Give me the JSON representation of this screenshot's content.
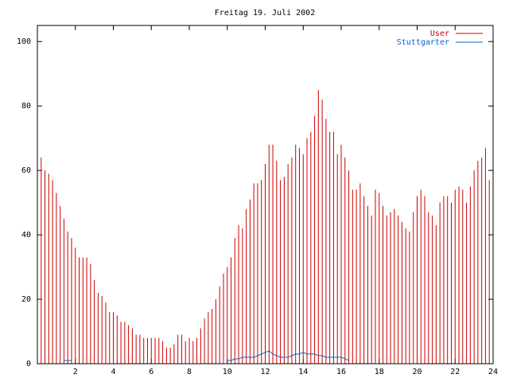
{
  "chart_data": {
    "type": "impulse",
    "title": "Freitag 19. Juli 2002",
    "x": [
      0,
      0.2,
      0.4,
      0.6,
      0.8,
      1,
      1.2,
      1.4,
      1.6,
      1.8,
      2,
      2.2,
      2.4,
      2.6,
      2.8,
      3,
      3.2,
      3.4,
      3.6,
      3.8,
      4,
      4.2,
      4.4,
      4.6,
      4.8,
      5,
      5.2,
      5.4,
      5.6,
      5.8,
      6,
      6.2,
      6.4,
      6.6,
      6.8,
      7,
      7.2,
      7.4,
      7.6,
      7.8,
      8,
      8.2,
      8.4,
      8.6,
      8.8,
      9,
      9.2,
      9.4,
      9.6,
      9.8,
      10,
      10.2,
      10.4,
      10.6,
      10.8,
      11,
      11.2,
      11.4,
      11.6,
      11.8,
      12,
      12.2,
      12.4,
      12.6,
      12.8,
      13,
      13.2,
      13.4,
      13.6,
      13.8,
      14,
      14.2,
      14.4,
      14.6,
      14.8,
      15,
      15.2,
      15.4,
      15.6,
      15.8,
      16,
      16.2,
      16.4,
      16.6,
      16.8,
      17,
      17.2,
      17.4,
      17.6,
      17.8,
      18,
      18.2,
      18.4,
      18.6,
      18.8,
      19,
      19.2,
      19.4,
      19.6,
      19.8,
      20,
      20.2,
      20.4,
      20.6,
      20.8,
      21,
      21.2,
      21.4,
      21.6,
      21.8,
      22,
      22.2,
      22.4,
      22.6,
      22.8,
      23,
      23.2,
      23.4,
      23.6,
      23.8,
      24
    ],
    "series": [
      {
        "name": "User",
        "color": "#cc0000",
        "style": "impulses",
        "values": [
          68,
          64,
          60,
          59,
          57,
          53,
          49,
          45,
          41,
          39,
          36,
          33,
          33,
          33,
          31,
          26,
          22,
          21,
          19,
          16,
          16,
          15,
          13,
          13,
          12,
          11,
          9,
          9,
          8,
          8,
          8,
          8,
          8,
          7,
          5,
          5,
          6,
          9,
          9,
          7,
          8,
          7,
          8,
          11,
          14,
          16,
          17,
          20,
          24,
          28,
          30,
          33,
          39,
          43,
          42,
          48,
          51,
          56,
          56,
          57,
          62,
          68,
          68,
          63,
          57,
          58,
          62,
          64,
          68,
          67,
          65,
          70,
          72,
          77,
          85,
          82,
          76,
          72,
          72,
          65,
          68,
          64,
          60,
          54,
          54,
          56,
          52,
          49,
          46,
          54,
          53,
          49,
          46,
          47,
          48,
          46,
          44,
          42,
          41,
          47,
          52,
          54,
          52,
          47,
          46,
          43,
          50,
          52,
          52,
          50,
          54,
          55,
          54,
          50,
          55,
          60,
          63,
          64,
          67,
          57,
          59
        ]
      },
      {
        "name": "Stuttgarter",
        "color": "#0066cc",
        "style": "lines",
        "values": [
          null,
          null,
          null,
          null,
          null,
          null,
          null,
          1,
          1,
          1,
          null,
          null,
          null,
          null,
          null,
          null,
          null,
          null,
          null,
          null,
          null,
          null,
          null,
          null,
          null,
          null,
          null,
          null,
          null,
          null,
          null,
          null,
          null,
          null,
          null,
          null,
          null,
          null,
          null,
          null,
          null,
          null,
          null,
          null,
          null,
          null,
          null,
          null,
          null,
          null,
          1,
          1,
          1.5,
          1.5,
          2,
          2,
          2,
          2,
          2.5,
          3,
          3.5,
          4,
          3,
          2.5,
          2,
          2,
          2,
          2.5,
          3,
          3,
          3.5,
          3,
          3,
          3,
          2.5,
          2.5,
          2,
          2,
          2,
          2,
          2,
          1.5,
          1,
          null,
          null,
          null,
          null,
          null,
          null,
          null,
          null,
          null,
          null,
          null,
          null,
          null,
          null,
          null,
          null,
          null,
          null,
          null,
          null,
          null,
          null,
          null,
          null,
          null,
          null,
          null,
          null,
          null,
          null,
          null,
          null,
          null,
          null,
          null,
          null,
          null,
          null
        ]
      }
    ],
    "xlim": [
      0,
      24
    ],
    "xticks": [
      2,
      4,
      6,
      8,
      10,
      12,
      14,
      16,
      18,
      20,
      22,
      24
    ],
    "ylim": [
      0,
      105
    ],
    "yticks": [
      0,
      20,
      40,
      60,
      80,
      100
    ],
    "legend": "top-right"
  }
}
